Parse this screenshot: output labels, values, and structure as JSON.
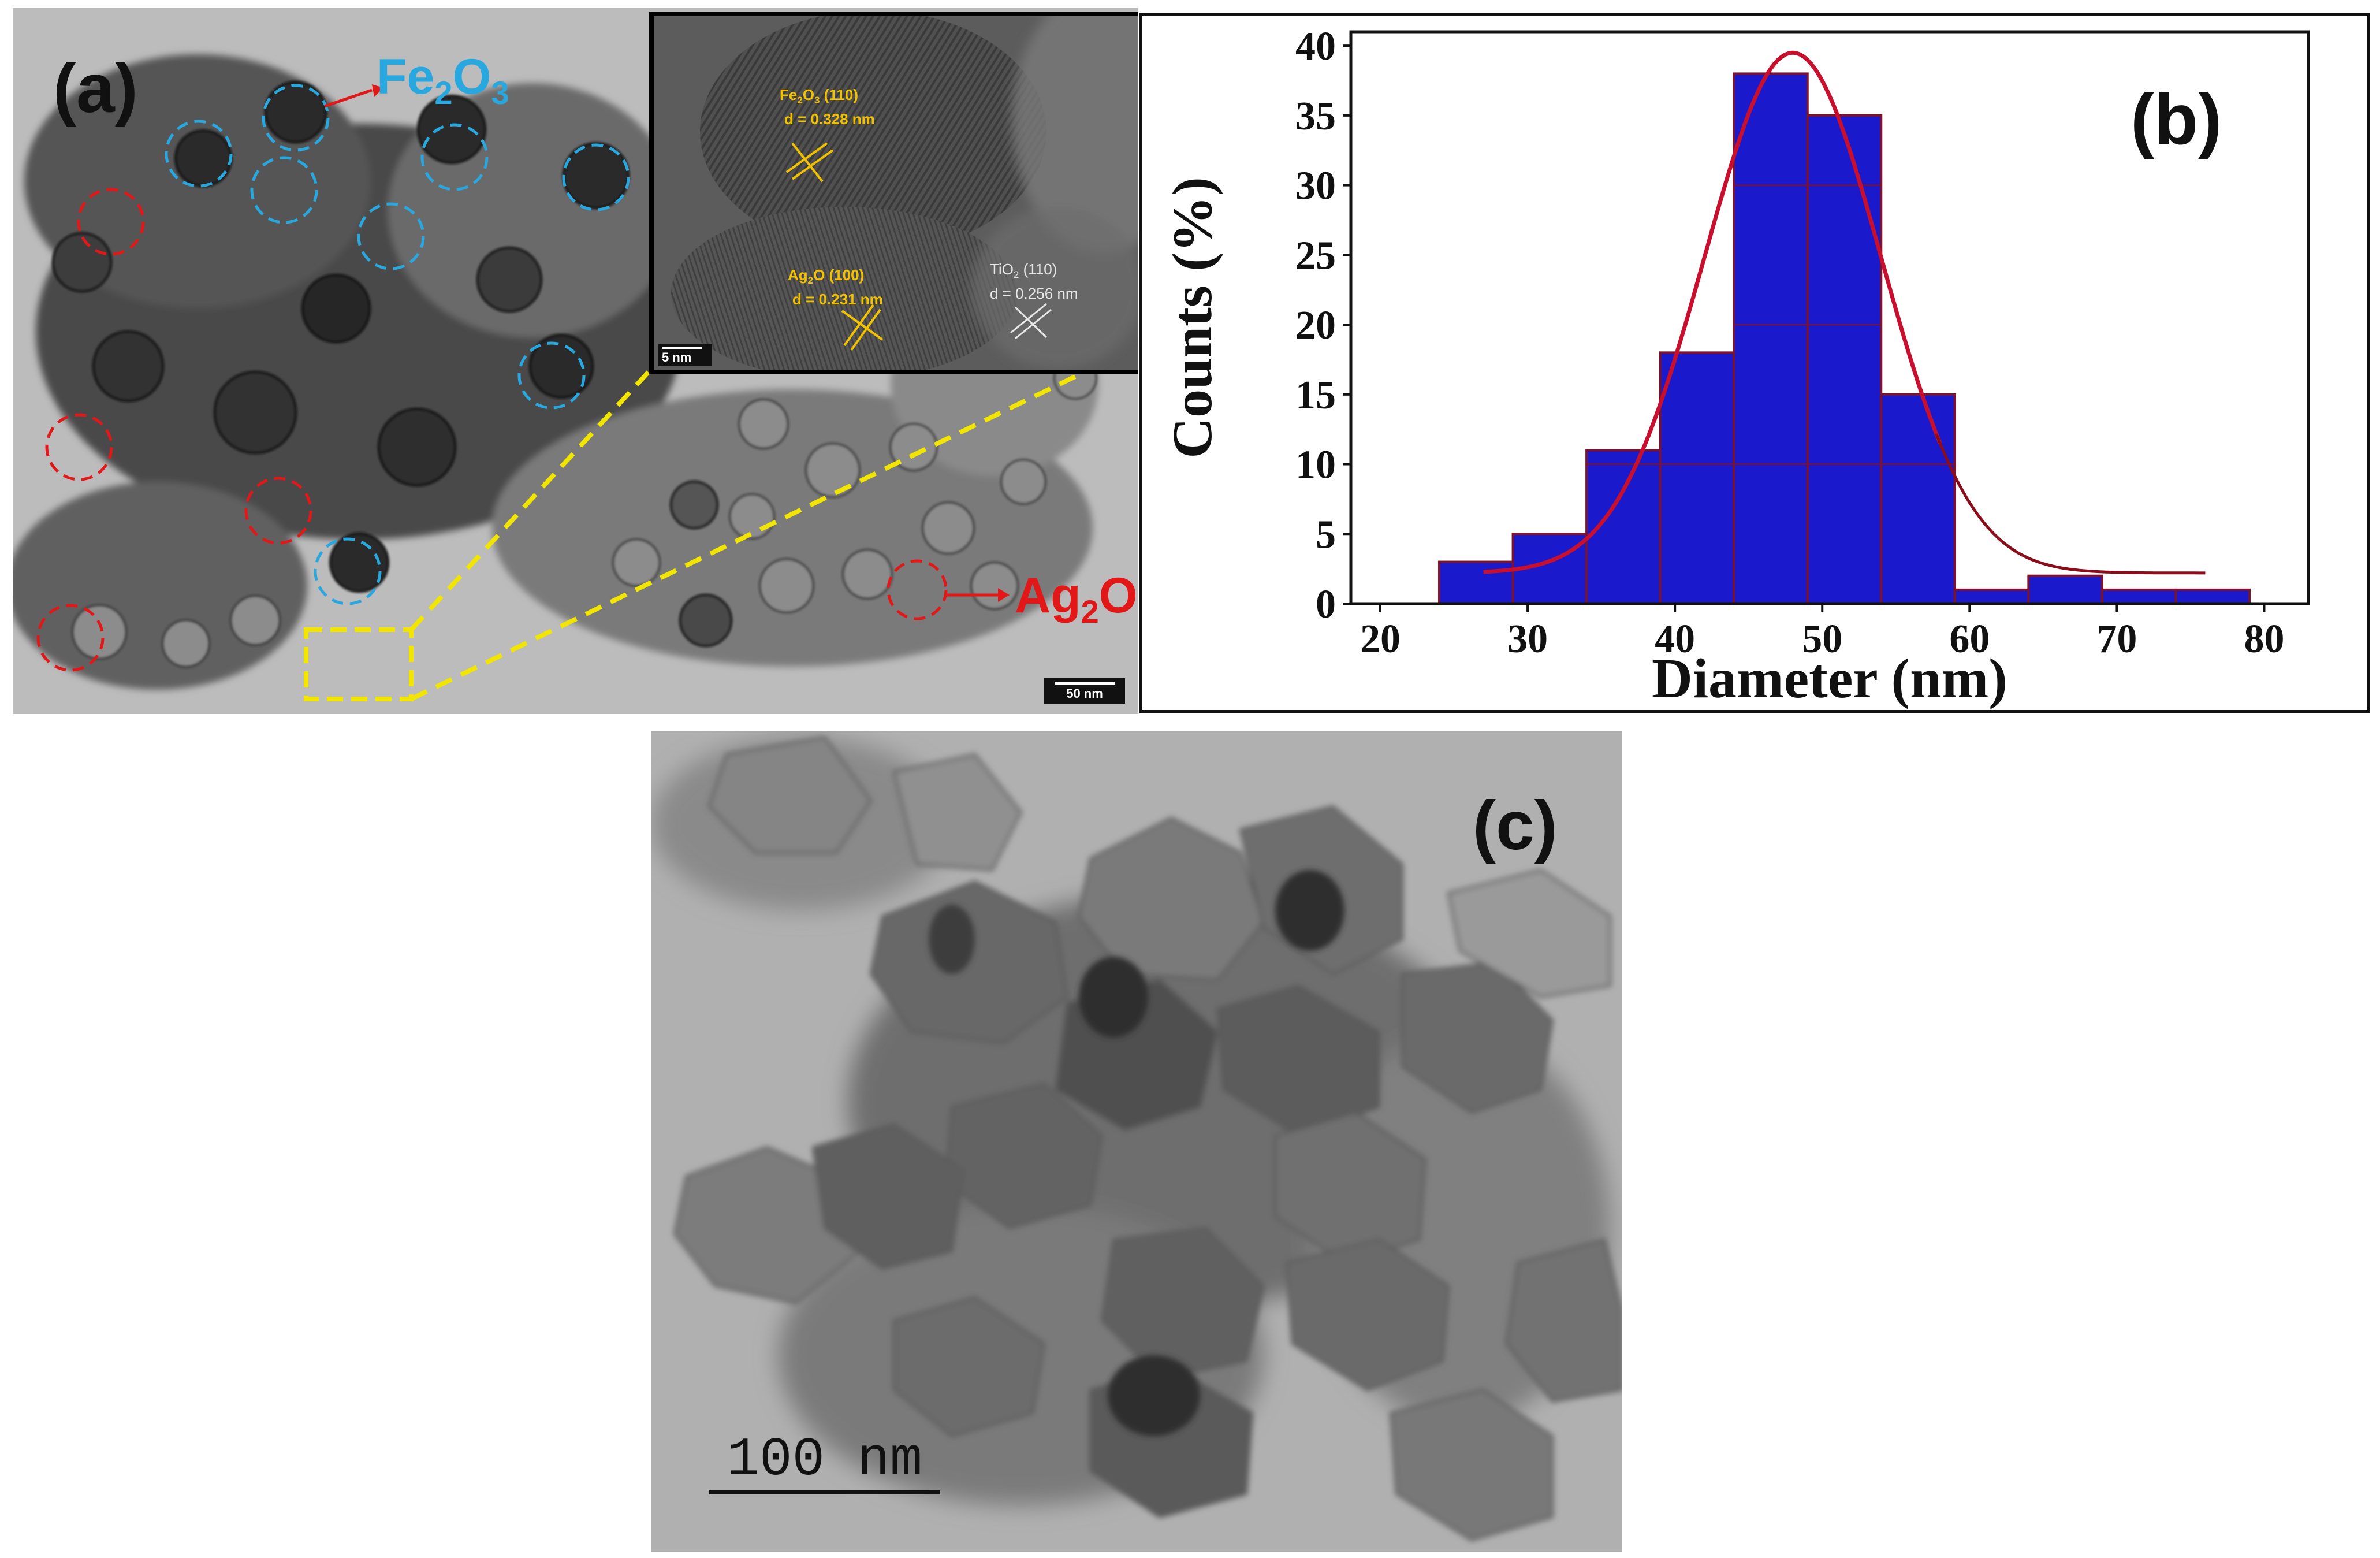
{
  "panels": {
    "a": {
      "letter": "(a)",
      "label_fe": {
        "base": "Fe",
        "sub1": "2",
        "mid": "O",
        "sub2": "3"
      },
      "label_ag": {
        "base": "Ag",
        "sub1": "2",
        "mid": "O"
      },
      "scale_label": "50 nm",
      "colors": {
        "fe_marker": "#29a8e0",
        "ag_marker": "#e21818",
        "zoom_box": "#f2e600"
      },
      "inset": {
        "fe_plane": {
          "base": "Fe",
          "sub1": "2",
          "mid": "O",
          "sub2": "3",
          "tail": " (110)",
          "d": "d = 0.328 nm"
        },
        "ag_plane": {
          "base": "Ag",
          "sub1": "2",
          "mid": "O",
          "tail": " (100)",
          "d": "d = 0.231 nm"
        },
        "ti_plane": {
          "base": "TiO",
          "sub1": "2",
          "tail": " (110)",
          "d": "d = 0.256 nm"
        },
        "scale_label": "5 nm",
        "colors": {
          "lattice_label": "#f2c200",
          "ti_label": "#e8e8e8"
        }
      }
    },
    "b": {
      "letter": "(b)"
    },
    "c": {
      "letter": "(c)",
      "scale_label": "100 nm"
    }
  },
  "chart_data": {
    "type": "bar",
    "categories": [
      "24-29",
      "29-34",
      "34-39",
      "39-44",
      "44-49",
      "49-54",
      "54-59",
      "59-64",
      "64-69",
      "69-74",
      "74-79"
    ],
    "x": [
      26.5,
      31.5,
      36.5,
      41.5,
      46.5,
      51.5,
      56.5,
      61.5,
      66.5,
      71.5,
      76.5
    ],
    "bin_width": 5,
    "values": [
      3,
      5,
      11,
      18,
      38,
      35,
      15,
      1,
      2,
      1,
      1
    ],
    "fit_curve": {
      "type": "gaussian",
      "center": 48,
      "peak": 39.5,
      "sigma": 6,
      "baseline": 2.2,
      "x_range": [
        27,
        76
      ]
    },
    "xlabel": "Diameter (nm)",
    "ylabel": "Counts (%)",
    "xlim": [
      18,
      83
    ],
    "ylim": [
      0,
      41
    ],
    "xticks": [
      20,
      30,
      40,
      50,
      60,
      70,
      80
    ],
    "yticks": [
      0,
      5,
      10,
      15,
      20,
      25,
      30,
      35,
      40
    ],
    "inner_gridlines": [
      10,
      20,
      30
    ],
    "grid": false,
    "colors": {
      "bar": "#1a1acc",
      "bar_edge": "#7a1230",
      "fit": "#c8102e",
      "fit_tail": "#8b0d1a"
    }
  }
}
